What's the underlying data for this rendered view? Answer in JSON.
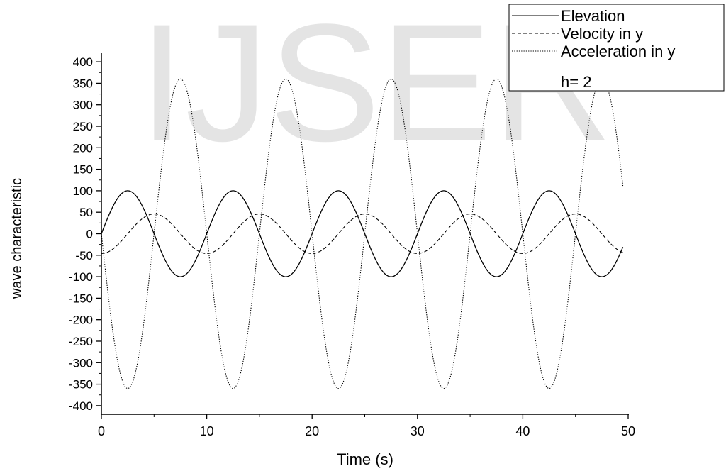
{
  "watermark": "IJSER",
  "chart_data": {
    "type": "line",
    "xlabel": "Time (s)",
    "ylabel": "wave characteristic",
    "xlim": [
      0,
      50
    ],
    "ylim": [
      -420,
      420
    ],
    "xticks": [
      0,
      10,
      20,
      30,
      40,
      50
    ],
    "yticks": [
      400,
      350,
      300,
      250,
      200,
      150,
      100,
      50,
      0,
      -50,
      -100,
      -150,
      -200,
      -250,
      -300,
      -350,
      -400
    ],
    "x_range": [
      0,
      49.5
    ],
    "period": 10,
    "legend_placement": "top-right",
    "grid": false,
    "series": [
      {
        "name": "Elevation",
        "style": "solid",
        "amplitude": 100,
        "function": "100*sin(2*pi*t/10)"
      },
      {
        "name": "Velocity in y",
        "style": "dashed",
        "amplitude": 46,
        "function": "-46*cos(2*pi*t/10)"
      },
      {
        "name": "Acceleration in y",
        "style": "dotted",
        "amplitude": 360,
        "function": "-360*sin(2*pi*t/10)"
      }
    ],
    "legend_extra": "h= 2"
  }
}
